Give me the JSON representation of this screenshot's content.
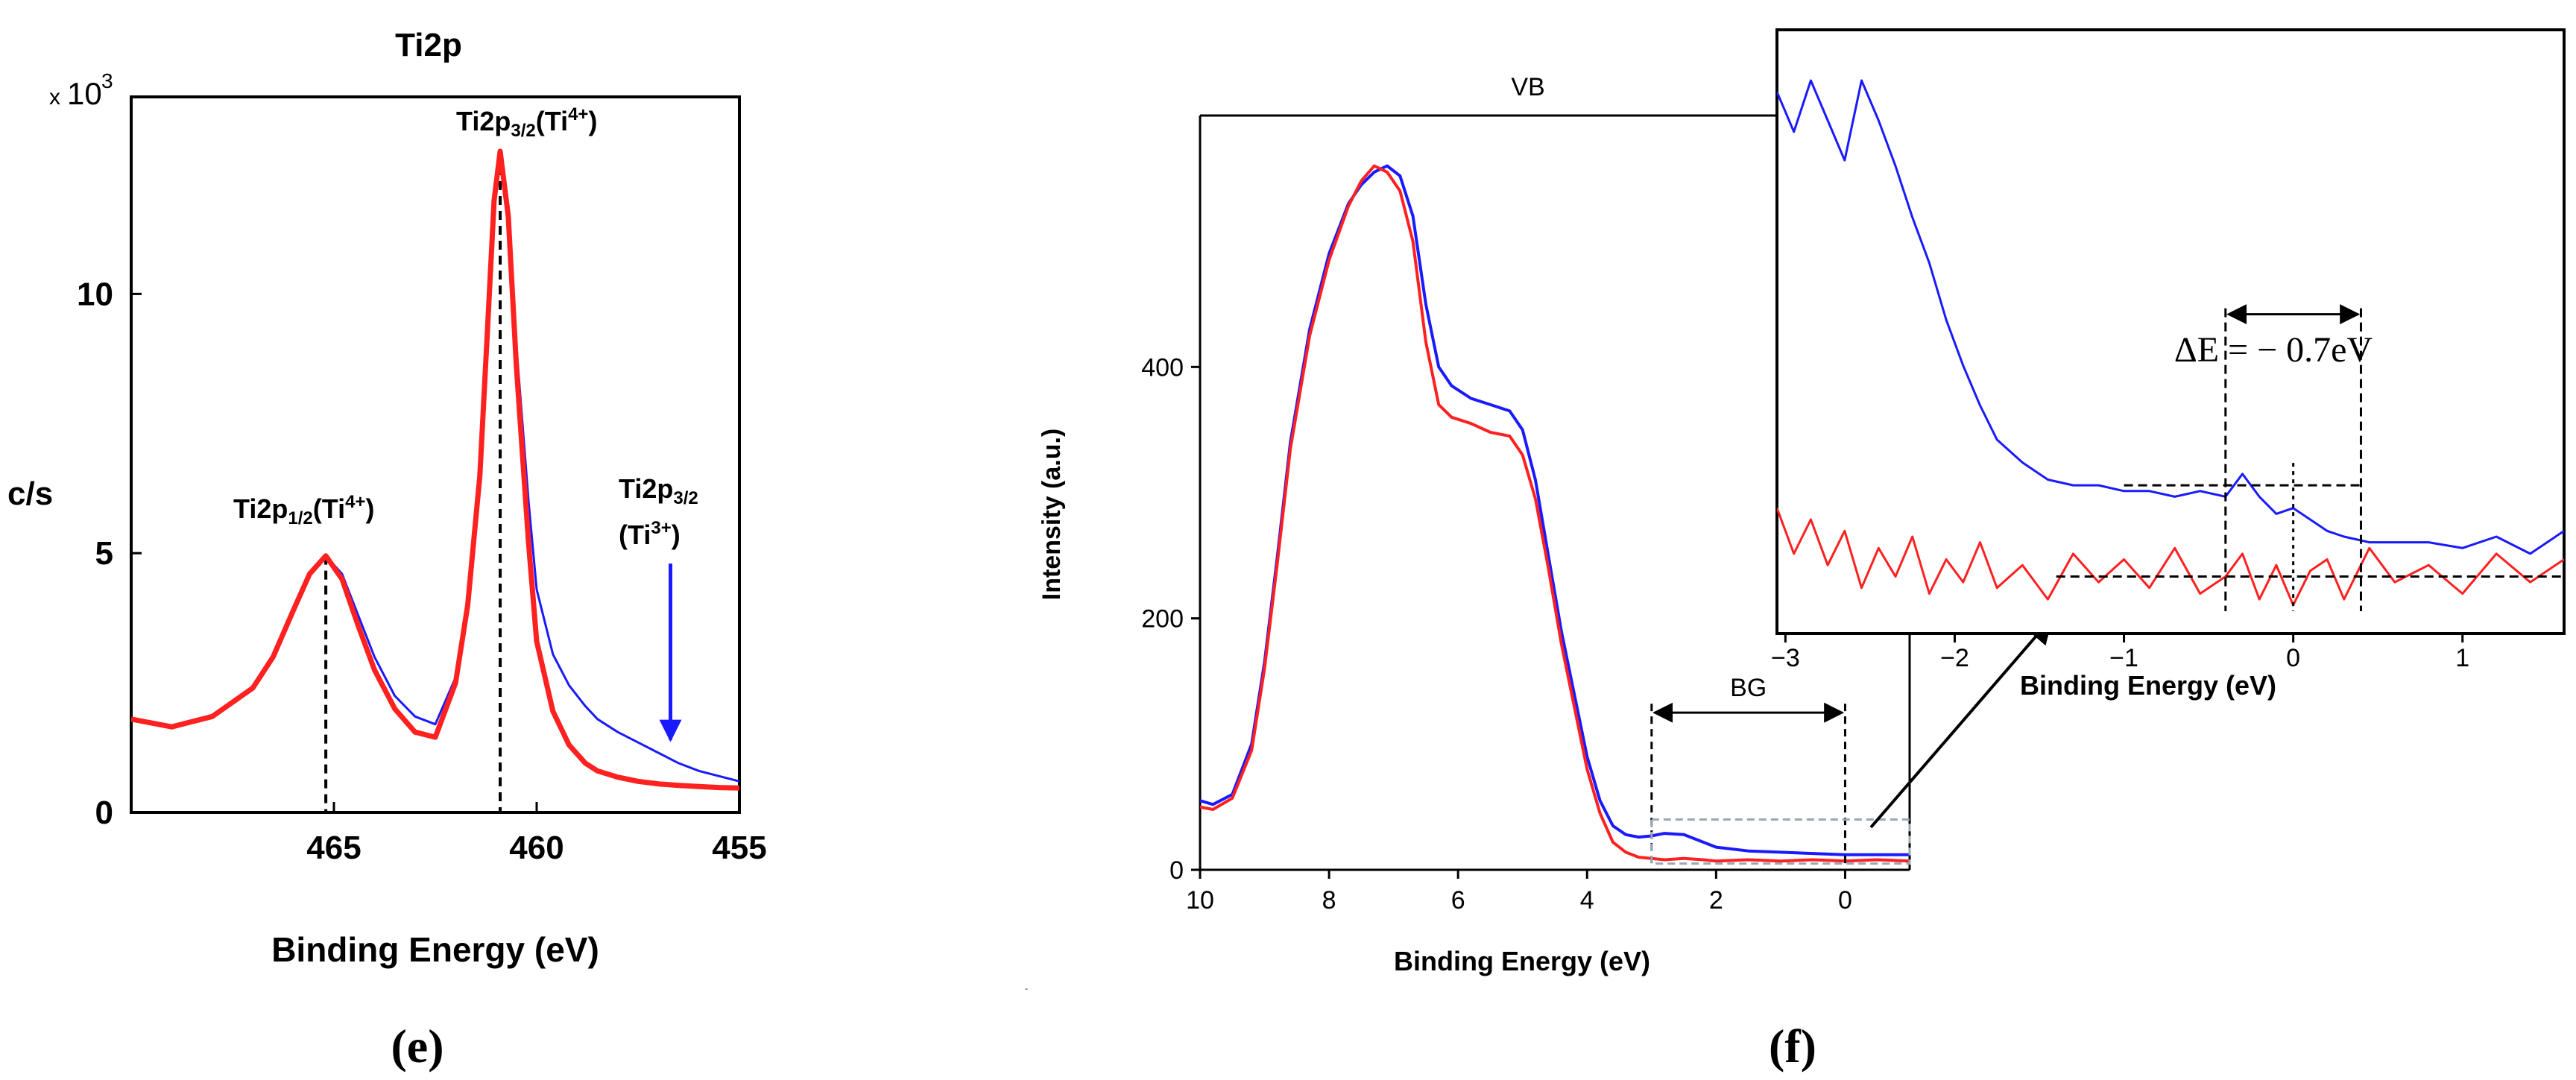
{
  "chart_data": [
    {
      "id": "e",
      "type": "line",
      "panel_label": "(e)",
      "title": "Ti2p",
      "xlabel": "Binding Energy (eV)",
      "ylabel": "c/s",
      "y_multiplier": {
        "prefix": "x",
        "base": "10",
        "exp": "3"
      },
      "xlim": [
        470,
        455
      ],
      "ylim": [
        0,
        13.8
      ],
      "x_ticks": [
        465,
        460,
        455
      ],
      "y_ticks": [
        0,
        5,
        10
      ],
      "series": [
        {
          "name": "blue",
          "color": "#1a1aff",
          "x": [
            470,
            469,
            468,
            467,
            466.5,
            466,
            465.6,
            465.2,
            464.8,
            464.4,
            464,
            463.5,
            463,
            462.5,
            462,
            461.7,
            461.4,
            461.2,
            461.05,
            460.9,
            460.7,
            460.5,
            460.2,
            460,
            459.6,
            459.2,
            458.8,
            458.5,
            458,
            457.5,
            457,
            456.5,
            456,
            455.5,
            455
          ],
          "y": [
            1.8,
            1.65,
            1.85,
            2.4,
            3,
            3.9,
            4.6,
            4.95,
            4.6,
            3.8,
            3,
            2.25,
            1.85,
            1.7,
            2.6,
            4,
            6.5,
            9.5,
            11.8,
            12.7,
            11.6,
            9,
            6,
            4.3,
            3.05,
            2.45,
            2.05,
            1.8,
            1.55,
            1.35,
            1.15,
            0.95,
            0.8,
            0.7,
            0.6
          ]
        },
        {
          "name": "red",
          "color": "#ff2020",
          "x": [
            470,
            469,
            468,
            467,
            466.5,
            466,
            465.6,
            465.2,
            464.8,
            464.4,
            464,
            463.5,
            463,
            462.5,
            462,
            461.7,
            461.4,
            461.2,
            461.05,
            460.9,
            460.7,
            460.5,
            460.2,
            460,
            459.6,
            459.2,
            458.8,
            458.5,
            458,
            457.5,
            457,
            456.5,
            456,
            455.5,
            455
          ],
          "y": [
            1.8,
            1.65,
            1.85,
            2.4,
            3,
            3.9,
            4.6,
            4.95,
            4.5,
            3.6,
            2.75,
            2.0,
            1.55,
            1.45,
            2.5,
            4,
            6.5,
            9.5,
            11.8,
            12.75,
            11.5,
            8.6,
            5.2,
            3.3,
            1.95,
            1.3,
            0.95,
            0.8,
            0.68,
            0.6,
            0.55,
            0.52,
            0.5,
            0.48,
            0.47
          ]
        }
      ],
      "annotations": [
        {
          "text": "Ti2p",
          "sub": "1/2",
          "tail": "(Ti",
          "sup": "4+",
          "end": ")",
          "x": 465.2,
          "y": 4.95
        },
        {
          "text": "Ti2p",
          "sub": "3/2",
          "tail": "(Ti",
          "sup": "4+",
          "end": ")",
          "x": 460.9,
          "y": 12.75
        },
        {
          "text": "Ti2p",
          "sub": "3/2",
          "line2": "(Ti",
          "sup2": "3+",
          "end2": ")",
          "arrow_x": 456.7,
          "arrow_y_from": 4.8,
          "arrow_y_to": 1.4
        }
      ]
    },
    {
      "id": "f",
      "type": "line",
      "panel_label": "(f)",
      "title": "VB",
      "xlabel": "Binding Energy (eV)",
      "ylabel": "Intensity (a.u.)",
      "xlim": [
        10,
        -1
      ],
      "ylim": [
        0,
        600
      ],
      "x_ticks": [
        10,
        8,
        6,
        4,
        2,
        0
      ],
      "y_ticks": [
        0,
        200,
        400
      ],
      "bg_label": "BG",
      "bg_range": [
        3,
        0
      ],
      "series": [
        {
          "name": "blue",
          "color": "#1a1aff",
          "x": [
            10,
            9.8,
            9.5,
            9.2,
            9,
            8.8,
            8.6,
            8.3,
            8,
            7.7,
            7.5,
            7.3,
            7.1,
            6.9,
            6.7,
            6.5,
            6.3,
            6.1,
            5.8,
            5.5,
            5.2,
            5.0,
            4.8,
            4.6,
            4.4,
            4.2,
            4.0,
            3.8,
            3.6,
            3.4,
            3.2,
            3.0,
            2.8,
            2.5,
            2.2,
            2.0,
            1.5,
            1.0,
            0.5,
            0,
            -0.5,
            -1
          ],
          "y": [
            55,
            52,
            60,
            100,
            165,
            250,
            340,
            430,
            490,
            530,
            545,
            555,
            560,
            552,
            520,
            450,
            400,
            385,
            375,
            370,
            365,
            350,
            310,
            250,
            190,
            140,
            90,
            55,
            35,
            28,
            26,
            27,
            29,
            28,
            22,
            18,
            15,
            14,
            13,
            12,
            12,
            12
          ]
        },
        {
          "name": "red",
          "color": "#ff2020",
          "x": [
            10,
            9.8,
            9.5,
            9.2,
            9,
            8.8,
            8.6,
            8.3,
            8,
            7.7,
            7.5,
            7.3,
            7.1,
            6.9,
            6.7,
            6.5,
            6.3,
            6.1,
            5.8,
            5.5,
            5.2,
            5.0,
            4.8,
            4.6,
            4.4,
            4.2,
            4.0,
            3.8,
            3.6,
            3.4,
            3.2,
            3.0,
            2.8,
            2.5,
            2.2,
            2.0,
            1.5,
            1.0,
            0.5,
            0,
            -0.5,
            -1
          ],
          "y": [
            50,
            48,
            57,
            95,
            160,
            245,
            335,
            425,
            485,
            528,
            548,
            560,
            555,
            540,
            500,
            420,
            370,
            360,
            355,
            348,
            345,
            330,
            295,
            240,
            180,
            130,
            80,
            45,
            22,
            14,
            10,
            9,
            8,
            9,
            8,
            7,
            8,
            7,
            8,
            7,
            8,
            7
          ]
        }
      ]
    },
    {
      "id": "f-inset",
      "type": "line",
      "xlabel": "Binding Energy (eV)",
      "xlim": [
        -3.05,
        1.6
      ],
      "ylim": [
        0,
        100
      ],
      "x_ticks": [
        -3,
        -2,
        -1,
        0,
        1
      ],
      "x_tick_labels": [
        "−3",
        "−2",
        "−1",
        "0",
        "1"
      ],
      "delta_e_label": "ΔE = − 0.7eV",
      "delta_e_range": [
        -0.4,
        0.4
      ],
      "series": [
        {
          "name": "blue",
          "color": "#1a1aff",
          "x": [
            -3.05,
            -2.95,
            -2.85,
            -2.75,
            -2.65,
            -2.55,
            -2.45,
            -2.35,
            -2.25,
            -2.15,
            -2.05,
            -1.95,
            -1.85,
            -1.75,
            -1.6,
            -1.45,
            -1.3,
            -1.15,
            -1.0,
            -0.85,
            -0.7,
            -0.55,
            -0.4,
            -0.3,
            -0.2,
            -0.1,
            0.0,
            0.1,
            0.2,
            0.3,
            0.45,
            0.6,
            0.8,
            1.0,
            1.2,
            1.4,
            1.6
          ],
          "y": [
            95,
            88,
            97,
            90,
            83,
            97,
            90,
            82,
            73,
            65,
            55,
            47,
            40,
            34,
            30,
            27,
            26,
            26,
            25,
            25,
            24,
            25,
            24,
            28,
            24,
            21,
            22,
            20,
            18,
            17,
            16,
            16,
            16,
            15,
            17,
            14,
            18
          ]
        },
        {
          "name": "red",
          "color": "#ff2020",
          "x": [
            -3.05,
            -2.95,
            -2.85,
            -2.75,
            -2.65,
            -2.55,
            -2.45,
            -2.35,
            -2.25,
            -2.15,
            -2.05,
            -1.95,
            -1.85,
            -1.75,
            -1.6,
            -1.45,
            -1.3,
            -1.15,
            -1.0,
            -0.85,
            -0.7,
            -0.55,
            -0.4,
            -0.3,
            -0.2,
            -0.1,
            0.0,
            0.1,
            0.2,
            0.3,
            0.45,
            0.6,
            0.8,
            1.0,
            1.2,
            1.4,
            1.6
          ],
          "y": [
            22,
            14,
            20,
            12,
            18,
            8,
            15,
            10,
            17,
            7,
            13,
            9,
            16,
            8,
            12,
            6,
            14,
            9,
            13,
            8,
            15,
            7,
            10,
            14,
            6,
            12,
            5,
            11,
            13,
            6,
            15,
            9,
            12,
            7,
            14,
            9,
            13
          ]
        }
      ]
    }
  ]
}
